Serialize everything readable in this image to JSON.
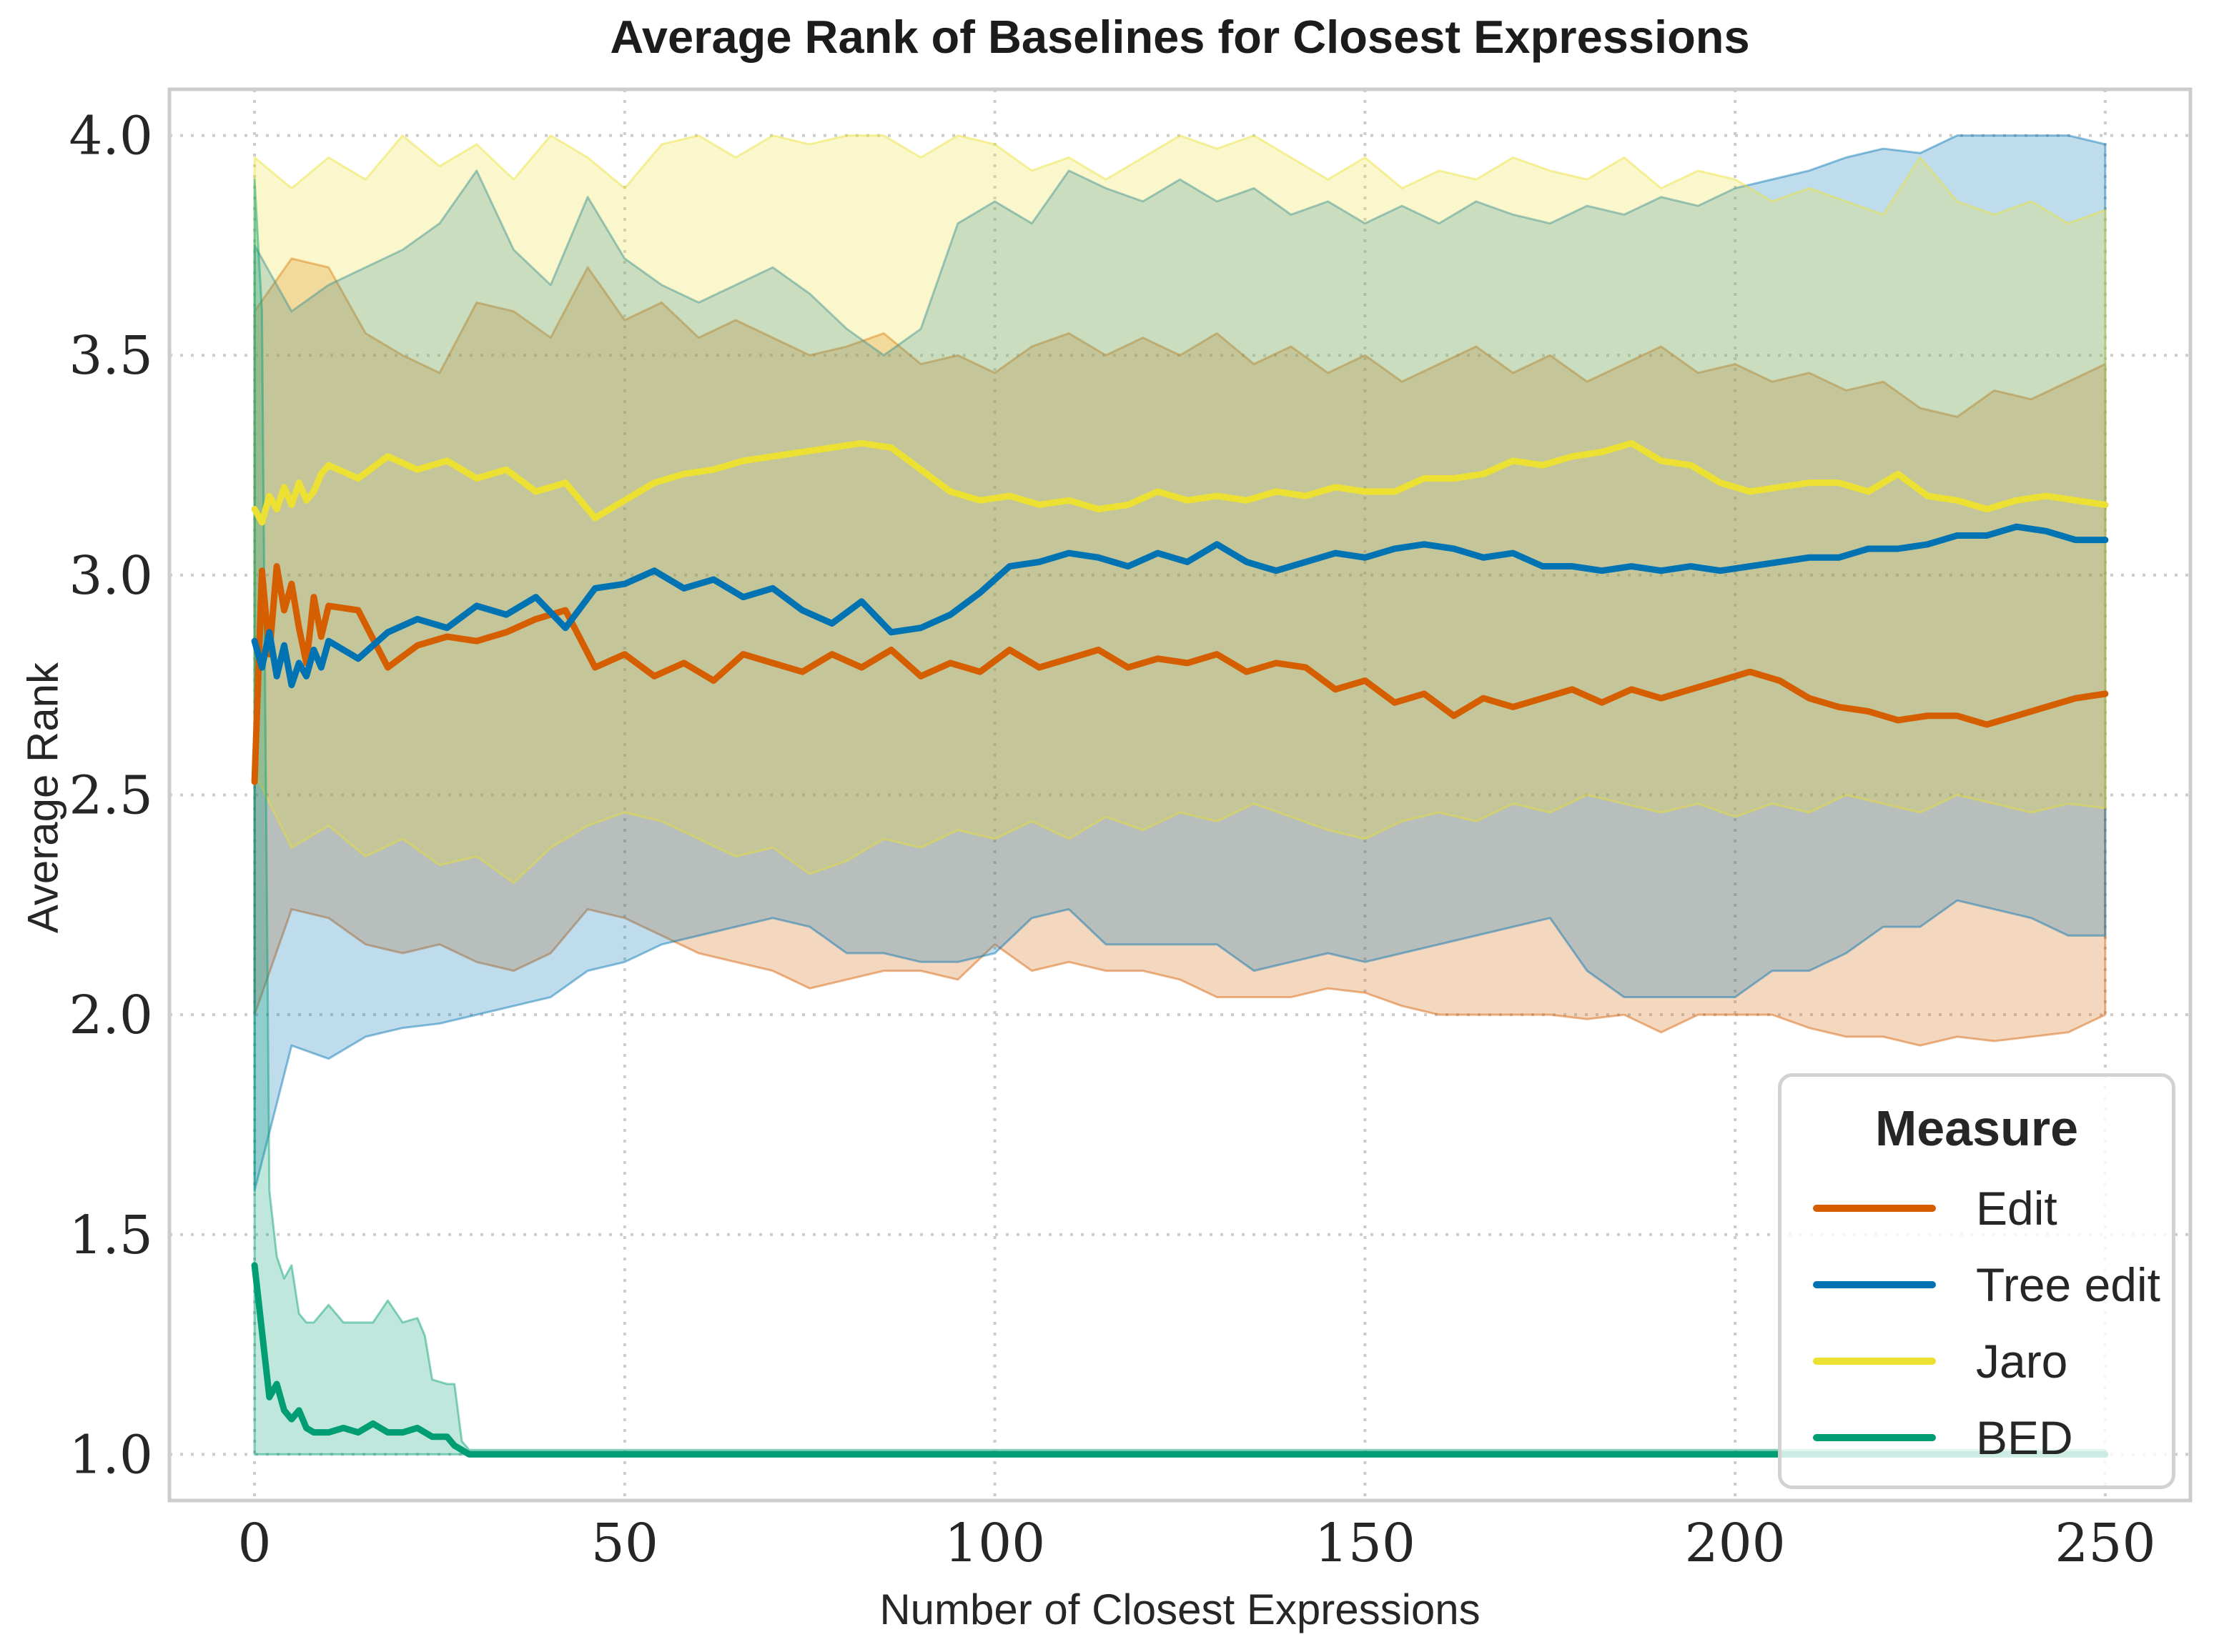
{
  "title": "Average Rank of Baselines for Closest Expressions",
  "chart_data": {
    "type": "line",
    "title": "Average Rank of Baselines for Closest Expressions",
    "xlabel": "Number of Closest Expressions",
    "ylabel": "Average Rank",
    "xlim": [
      -11.5,
      261.5
    ],
    "ylim": [
      0.895,
      4.105
    ],
    "xticks": [
      0,
      50,
      100,
      150,
      200,
      250
    ],
    "xtick_labels": [
      "0",
      "50",
      "100",
      "150",
      "200",
      "250"
    ],
    "yticks": [
      1.0,
      1.5,
      2.0,
      2.5,
      3.0,
      3.5,
      4.0
    ],
    "ytick_labels": [
      "1.0",
      "1.5",
      "2.0",
      "2.5",
      "3.0",
      "3.5",
      "4.0"
    ],
    "grid": true,
    "grid_style": "dotted",
    "legend": {
      "title": "Measure",
      "position": "lower right",
      "entries": [
        "Edit",
        "Tree edit",
        "Jaro",
        "BED"
      ]
    },
    "band_alpha": 0.25,
    "band_edge_alpha": 0.45,
    "series": [
      {
        "name": "Edit",
        "color": "#d55e00",
        "x": [
          0,
          1,
          2,
          3,
          4,
          5,
          6,
          7,
          8,
          9,
          10,
          14,
          18,
          22,
          26,
          30,
          34,
          38,
          42,
          46,
          50,
          54,
          58,
          62,
          66,
          70,
          74,
          78,
          82,
          86,
          90,
          94,
          98,
          102,
          106,
          110,
          114,
          118,
          122,
          126,
          130,
          134,
          138,
          142,
          146,
          150,
          154,
          158,
          162,
          166,
          170,
          174,
          178,
          182,
          186,
          190,
          194,
          198,
          202,
          206,
          210,
          214,
          218,
          222,
          226,
          230,
          234,
          238,
          242,
          246,
          250
        ],
        "y": [
          2.53,
          3.01,
          2.82,
          3.02,
          2.92,
          2.98,
          2.88,
          2.8,
          2.95,
          2.86,
          2.93,
          2.92,
          2.79,
          2.84,
          2.86,
          2.85,
          2.87,
          2.9,
          2.92,
          2.79,
          2.82,
          2.77,
          2.8,
          2.76,
          2.82,
          2.8,
          2.78,
          2.82,
          2.79,
          2.83,
          2.77,
          2.8,
          2.78,
          2.83,
          2.79,
          2.81,
          2.83,
          2.79,
          2.81,
          2.8,
          2.82,
          2.78,
          2.8,
          2.79,
          2.74,
          2.76,
          2.71,
          2.73,
          2.68,
          2.72,
          2.7,
          2.72,
          2.74,
          2.71,
          2.74,
          2.72,
          2.74,
          2.76,
          2.78,
          2.76,
          2.72,
          2.7,
          2.69,
          2.67,
          2.68,
          2.68,
          2.66,
          2.68,
          2.7,
          2.72,
          2.73
        ],
        "band_x": [
          0,
          5,
          10,
          15,
          20,
          25,
          30,
          35,
          40,
          45,
          50,
          55,
          60,
          65,
          70,
          75,
          80,
          85,
          90,
          95,
          100,
          105,
          110,
          115,
          120,
          125,
          130,
          135,
          140,
          145,
          150,
          155,
          160,
          165,
          170,
          175,
          180,
          185,
          190,
          195,
          200,
          205,
          210,
          215,
          220,
          225,
          230,
          235,
          240,
          245,
          250
        ],
        "band_lo": [
          2.0,
          2.24,
          2.22,
          2.16,
          2.14,
          2.16,
          2.12,
          2.1,
          2.14,
          2.24,
          2.22,
          2.18,
          2.14,
          2.12,
          2.1,
          2.06,
          2.08,
          2.1,
          2.1,
          2.08,
          2.16,
          2.1,
          2.12,
          2.1,
          2.1,
          2.08,
          2.04,
          2.04,
          2.04,
          2.06,
          2.05,
          2.02,
          2.0,
          2.0,
          2.0,
          2.0,
          1.99,
          2.0,
          1.96,
          2.0,
          2.0,
          2.0,
          1.97,
          1.95,
          1.95,
          1.93,
          1.95,
          1.94,
          1.95,
          1.96,
          2.0
        ],
        "band_hi": [
          3.6,
          3.72,
          3.7,
          3.55,
          3.5,
          3.46,
          3.62,
          3.6,
          3.54,
          3.7,
          3.58,
          3.62,
          3.54,
          3.58,
          3.54,
          3.5,
          3.52,
          3.55,
          3.48,
          3.5,
          3.46,
          3.52,
          3.55,
          3.5,
          3.54,
          3.5,
          3.55,
          3.48,
          3.52,
          3.46,
          3.5,
          3.44,
          3.48,
          3.52,
          3.46,
          3.5,
          3.44,
          3.48,
          3.52,
          3.46,
          3.48,
          3.44,
          3.46,
          3.42,
          3.44,
          3.38,
          3.36,
          3.42,
          3.4,
          3.44,
          3.48
        ]
      },
      {
        "name": "Tree edit",
        "color": "#0173b2",
        "x": [
          0,
          1,
          2,
          3,
          4,
          5,
          6,
          7,
          8,
          9,
          10,
          14,
          18,
          22,
          26,
          30,
          34,
          38,
          42,
          46,
          50,
          54,
          58,
          62,
          66,
          70,
          74,
          78,
          82,
          86,
          90,
          94,
          98,
          102,
          106,
          110,
          114,
          118,
          122,
          126,
          130,
          134,
          138,
          142,
          146,
          150,
          154,
          158,
          162,
          166,
          170,
          174,
          178,
          182,
          186,
          190,
          194,
          198,
          202,
          206,
          210,
          214,
          218,
          222,
          226,
          230,
          234,
          238,
          242,
          246,
          250
        ],
        "y": [
          2.85,
          2.79,
          2.87,
          2.77,
          2.84,
          2.75,
          2.8,
          2.77,
          2.83,
          2.79,
          2.85,
          2.81,
          2.87,
          2.9,
          2.88,
          2.93,
          2.91,
          2.95,
          2.88,
          2.97,
          2.98,
          3.01,
          2.97,
          2.99,
          2.95,
          2.97,
          2.92,
          2.89,
          2.94,
          2.87,
          2.88,
          2.91,
          2.96,
          3.02,
          3.03,
          3.05,
          3.04,
          3.02,
          3.05,
          3.03,
          3.07,
          3.03,
          3.01,
          3.03,
          3.05,
          3.04,
          3.06,
          3.07,
          3.06,
          3.04,
          3.05,
          3.02,
          3.02,
          3.01,
          3.02,
          3.01,
          3.02,
          3.01,
          3.02,
          3.03,
          3.04,
          3.04,
          3.06,
          3.06,
          3.07,
          3.09,
          3.09,
          3.11,
          3.1,
          3.08,
          3.08
        ],
        "band_x": [
          0,
          5,
          10,
          15,
          20,
          25,
          30,
          35,
          40,
          45,
          50,
          55,
          60,
          65,
          70,
          75,
          80,
          85,
          90,
          95,
          100,
          105,
          110,
          115,
          120,
          125,
          130,
          135,
          140,
          145,
          150,
          155,
          160,
          165,
          170,
          175,
          180,
          185,
          190,
          195,
          200,
          205,
          210,
          215,
          220,
          225,
          230,
          235,
          240,
          245,
          250
        ],
        "band_lo": [
          1.6,
          1.93,
          1.9,
          1.95,
          1.97,
          1.98,
          2.0,
          2.02,
          2.04,
          2.1,
          2.12,
          2.16,
          2.18,
          2.2,
          2.22,
          2.2,
          2.14,
          2.14,
          2.12,
          2.12,
          2.14,
          2.22,
          2.24,
          2.16,
          2.16,
          2.16,
          2.16,
          2.1,
          2.12,
          2.14,
          2.12,
          2.14,
          2.16,
          2.18,
          2.2,
          2.22,
          2.1,
          2.04,
          2.04,
          2.04,
          2.04,
          2.1,
          2.1,
          2.14,
          2.2,
          2.2,
          2.26,
          2.24,
          2.22,
          2.18,
          2.18
        ],
        "band_hi": [
          3.75,
          3.6,
          3.66,
          3.7,
          3.74,
          3.8,
          3.92,
          3.74,
          3.66,
          3.86,
          3.72,
          3.66,
          3.62,
          3.66,
          3.7,
          3.64,
          3.56,
          3.5,
          3.56,
          3.8,
          3.85,
          3.8,
          3.92,
          3.88,
          3.85,
          3.9,
          3.85,
          3.88,
          3.82,
          3.85,
          3.8,
          3.84,
          3.8,
          3.85,
          3.82,
          3.8,
          3.84,
          3.82,
          3.86,
          3.84,
          3.88,
          3.9,
          3.92,
          3.95,
          3.97,
          3.96,
          4.0,
          4.0,
          4.0,
          4.0,
          3.98
        ]
      },
      {
        "name": "Jaro",
        "color": "#ece133",
        "x": [
          0,
          1,
          2,
          3,
          4,
          5,
          6,
          7,
          8,
          9,
          10,
          14,
          18,
          22,
          26,
          30,
          34,
          38,
          42,
          46,
          50,
          54,
          58,
          62,
          66,
          70,
          74,
          78,
          82,
          86,
          90,
          94,
          98,
          102,
          106,
          110,
          114,
          118,
          122,
          126,
          130,
          134,
          138,
          142,
          146,
          150,
          154,
          158,
          162,
          166,
          170,
          174,
          178,
          182,
          186,
          190,
          194,
          198,
          202,
          206,
          210,
          214,
          218,
          222,
          226,
          230,
          234,
          238,
          242,
          246,
          250
        ],
        "y": [
          3.15,
          3.12,
          3.18,
          3.15,
          3.2,
          3.16,
          3.21,
          3.17,
          3.19,
          3.23,
          3.25,
          3.22,
          3.27,
          3.24,
          3.26,
          3.22,
          3.24,
          3.19,
          3.21,
          3.13,
          3.17,
          3.21,
          3.23,
          3.24,
          3.26,
          3.27,
          3.28,
          3.29,
          3.3,
          3.29,
          3.24,
          3.19,
          3.17,
          3.18,
          3.16,
          3.17,
          3.15,
          3.16,
          3.19,
          3.17,
          3.18,
          3.17,
          3.19,
          3.18,
          3.2,
          3.19,
          3.19,
          3.22,
          3.22,
          3.23,
          3.26,
          3.25,
          3.27,
          3.28,
          3.3,
          3.26,
          3.25,
          3.21,
          3.19,
          3.2,
          3.21,
          3.21,
          3.19,
          3.23,
          3.18,
          3.17,
          3.15,
          3.17,
          3.18,
          3.17,
          3.16
        ],
        "band_x": [
          0,
          5,
          10,
          15,
          20,
          25,
          30,
          35,
          40,
          45,
          50,
          55,
          60,
          65,
          70,
          75,
          80,
          85,
          90,
          95,
          100,
          105,
          110,
          115,
          120,
          125,
          130,
          135,
          140,
          145,
          150,
          155,
          160,
          165,
          170,
          175,
          180,
          185,
          190,
          195,
          200,
          205,
          210,
          215,
          220,
          225,
          230,
          235,
          240,
          245,
          250
        ],
        "band_lo": [
          2.55,
          2.38,
          2.43,
          2.36,
          2.4,
          2.34,
          2.36,
          2.3,
          2.38,
          2.43,
          2.46,
          2.44,
          2.4,
          2.36,
          2.38,
          2.32,
          2.35,
          2.4,
          2.38,
          2.42,
          2.4,
          2.44,
          2.4,
          2.45,
          2.42,
          2.46,
          2.44,
          2.48,
          2.45,
          2.42,
          2.4,
          2.44,
          2.46,
          2.44,
          2.48,
          2.46,
          2.5,
          2.48,
          2.46,
          2.48,
          2.45,
          2.48,
          2.46,
          2.5,
          2.48,
          2.46,
          2.5,
          2.48,
          2.46,
          2.48,
          2.47
        ],
        "band_hi": [
          3.95,
          3.88,
          3.95,
          3.9,
          4.0,
          3.93,
          3.98,
          3.9,
          4.0,
          3.95,
          3.88,
          3.98,
          4.0,
          3.95,
          4.0,
          3.98,
          4.0,
          4.0,
          3.95,
          4.0,
          3.98,
          3.92,
          3.95,
          3.9,
          3.95,
          4.0,
          3.97,
          4.0,
          3.95,
          3.9,
          3.95,
          3.88,
          3.92,
          3.9,
          3.95,
          3.92,
          3.9,
          3.95,
          3.88,
          3.92,
          3.9,
          3.85,
          3.88,
          3.85,
          3.82,
          3.95,
          3.85,
          3.82,
          3.85,
          3.8,
          3.83
        ]
      },
      {
        "name": "BED",
        "color": "#029e73",
        "x": [
          0,
          1,
          2,
          3,
          4,
          5,
          6,
          7,
          8,
          10,
          12,
          14,
          16,
          18,
          20,
          22,
          23,
          24,
          26,
          27,
          28,
          29,
          30,
          40,
          60,
          100,
          150,
          200,
          250
        ],
        "y": [
          1.43,
          1.28,
          1.13,
          1.16,
          1.1,
          1.08,
          1.1,
          1.06,
          1.05,
          1.05,
          1.06,
          1.05,
          1.07,
          1.05,
          1.05,
          1.06,
          1.05,
          1.04,
          1.04,
          1.02,
          1.01,
          1.0,
          1.0,
          1.0,
          1.0,
          1.0,
          1.0,
          1.0,
          1.0
        ],
        "band_x": [
          0,
          1,
          2,
          3,
          4,
          5,
          6,
          7,
          8,
          10,
          12,
          14,
          16,
          18,
          20,
          22,
          23,
          24,
          26,
          27,
          28,
          29,
          30,
          40,
          60,
          100,
          150,
          200,
          250
        ],
        "band_lo": [
          1.0,
          1.0,
          1.0,
          1.0,
          1.0,
          1.0,
          1.0,
          1.0,
          1.0,
          1.0,
          1.0,
          1.0,
          1.0,
          1.0,
          1.0,
          1.0,
          1.0,
          1.0,
          1.0,
          1.0,
          1.0,
          1.0,
          1.0,
          1.0,
          1.0,
          1.0,
          1.0,
          1.0,
          1.0
        ],
        "band_hi": [
          3.9,
          3.6,
          1.6,
          1.45,
          1.4,
          1.43,
          1.32,
          1.3,
          1.3,
          1.34,
          1.3,
          1.3,
          1.3,
          1.35,
          1.3,
          1.31,
          1.27,
          1.17,
          1.16,
          1.16,
          1.03,
          1.01,
          1.01,
          1.01,
          1.01,
          1.01,
          1.01,
          1.01,
          1.01
        ]
      }
    ]
  },
  "colors": {
    "grid": "#cccccc",
    "spine": "#cccccc",
    "tick_text": "#262626",
    "title_text": "#1c1c1c",
    "legend_border": "#d2d2d2"
  }
}
